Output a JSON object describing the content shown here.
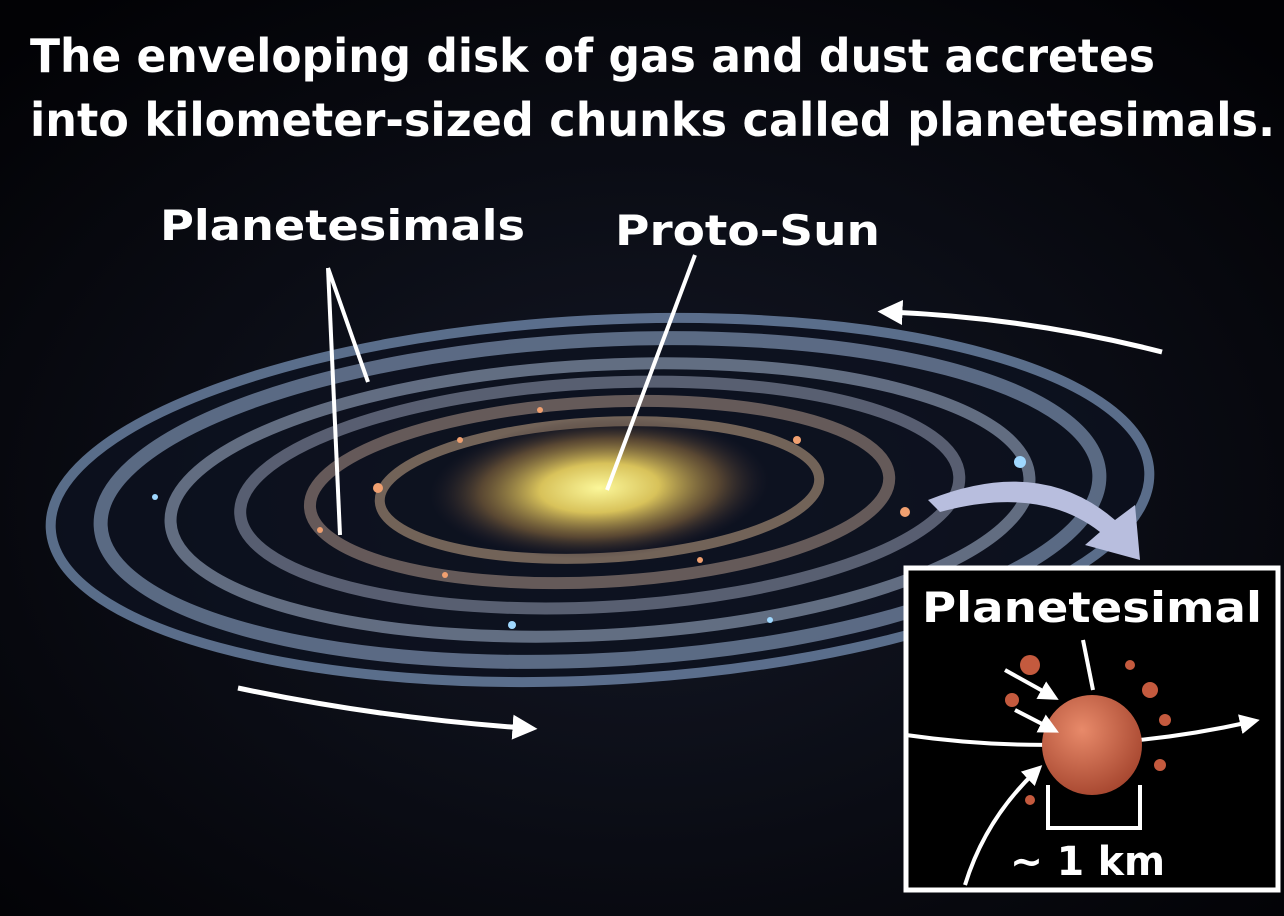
{
  "title_lines": [
    "The enveloping disk of gas and dust accretes",
    "into kilometer-sized chunks called planetesimals."
  ],
  "disk_labels": [
    "Planetesimals",
    "Proto-Sun"
  ],
  "inset": {
    "label": "Planetesimal",
    "scale": "~ 1 km"
  }
}
